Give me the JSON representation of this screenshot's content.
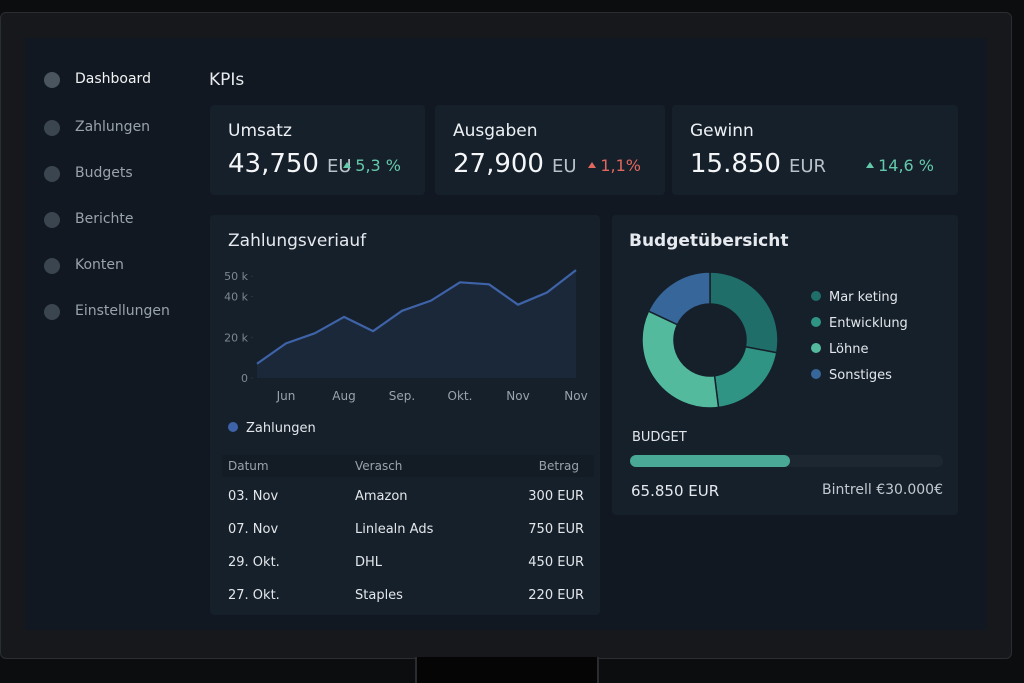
{
  "sidebar": {
    "items": [
      "Dashboard",
      "Zahlungen",
      "Budgets",
      "Berichte",
      "Konten",
      "Einstellungen"
    ]
  },
  "header": {
    "title": "KPIs"
  },
  "kpis": [
    {
      "label": "Umsatz",
      "value": "43,750",
      "unit": "EU",
      "change": "5,3 %",
      "direction": "up",
      "color": "#63c9aa"
    },
    {
      "label": "Ausgaben",
      "value": "27,900",
      "unit": "EU",
      "change": "1,1%",
      "direction": "up",
      "color": "#e0685e"
    },
    {
      "label": "Gewinn",
      "value": "15.850",
      "unit": "EUR",
      "change": "14,6 %",
      "direction": "up",
      "color": "#63c9aa"
    }
  ],
  "payments_chart": {
    "type": "line",
    "title": "Zahlungsveriauf",
    "categories": [
      null,
      "Jun",
      null,
      "Aug",
      null,
      "Sep.",
      null,
      "Okt.",
      null,
      "Nov",
      null,
      "Nov"
    ],
    "series": [
      {
        "name": "Zahlungen",
        "color": "#3e63a8",
        "values": [
          7,
          17,
          22,
          30,
          23,
          33,
          38,
          47,
          46,
          36,
          42,
          53
        ]
      }
    ],
    "ylim": [
      0,
      55
    ],
    "yticks": [
      0,
      {
        "value": 20,
        "label": "20 k"
      },
      {
        "value": 40,
        "label": "40 k"
      },
      {
        "value": 50,
        "label": "50 k"
      }
    ],
    "grid": false
  },
  "payments_table": {
    "columns": [
      "Datum",
      "Verasch",
      "Betrag"
    ],
    "rows": [
      [
        "03. Nov",
        "Amazon",
        "300 EUR"
      ],
      [
        "07. Nov",
        "Linlealn Ads",
        "750 EUR"
      ],
      [
        "29. Okt.",
        "DHL",
        "450 EUR"
      ],
      [
        "27. Okt.",
        "Staples",
        "220 EUR"
      ]
    ]
  },
  "budget_chart": {
    "type": "donut",
    "title": "Budgetübersicht",
    "categories": [
      "Mar keting",
      "Entwicklung",
      "Löhne",
      "Sonstiges"
    ],
    "values": [
      28,
      20,
      34,
      18
    ],
    "colors": [
      "#1f6e69",
      "#2f9484",
      "#54ba9e",
      "#37679a"
    ]
  },
  "budget_bar": {
    "label": "BUDGET",
    "progress": 51,
    "amount": "65.850 EUR",
    "note": "Bintrell €30.000€"
  }
}
